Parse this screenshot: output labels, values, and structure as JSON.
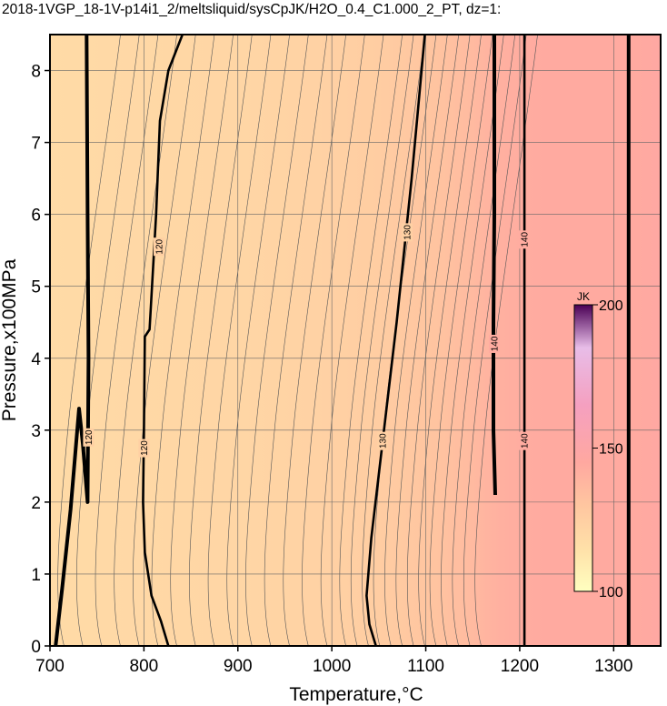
{
  "chart_data": {
    "type": "heatmap",
    "title": "2018-1VGP_18-1V-p14i1_2/meltsliquid/sysCpJK/H2O_0.4_C1.000_2_PT, dz=1:",
    "xlabel": "Temperature,°C",
    "ylabel": "Pressure,x100MPa",
    "xlim": [
      700,
      1350
    ],
    "ylim": [
      0,
      8.5
    ],
    "xticks": [
      "700",
      "800",
      "900",
      "1000",
      "1100",
      "1200",
      "1300"
    ],
    "yticks": [
      "0",
      "1",
      "2",
      "3",
      "4",
      "5",
      "6",
      "7",
      "8"
    ],
    "grid": true,
    "colorbar": {
      "unit": "JK",
      "range": [
        100,
        200
      ],
      "ticks": [
        "100",
        "150",
        "200"
      ],
      "placement": "right-inside",
      "stops": [
        {
          "value": 100,
          "color": "#ffffc0"
        },
        {
          "value": 115,
          "color": "#ffe0a8"
        },
        {
          "value": 130,
          "color": "#ffc6a0"
        },
        {
          "value": 145,
          "color": "#ffa8a0"
        },
        {
          "value": 165,
          "color": "#f5a0c0"
        },
        {
          "value": 185,
          "color": "#e8bde8"
        },
        {
          "value": 200,
          "color": "#4a0055"
        }
      ]
    },
    "background_field": {
      "description_note": "",
      "x": [
        700,
        760,
        830,
        900,
        980,
        1050,
        1110,
        1150,
        1165,
        1180,
        1205,
        1230,
        1320,
        1350
      ],
      "values": [
        118,
        119,
        120,
        121,
        123,
        126,
        131,
        136,
        139,
        141,
        143,
        144,
        144,
        146
      ]
    },
    "labeled_contours": [
      {
        "value": "120",
        "points": [
          [
            706,
            0
          ],
          [
            713,
            0.8
          ],
          [
            722,
            1.9
          ],
          [
            731,
            3.3
          ],
          [
            735,
            2.8
          ],
          [
            740,
            2.0
          ],
          [
            741,
            4.0
          ],
          [
            740,
            6.0
          ],
          [
            739,
            8.5
          ]
        ],
        "labels": [
          [
            741,
            2.9
          ]
        ]
      },
      {
        "value": "120",
        "points": [
          [
            826,
            0
          ],
          [
            818,
            0.35
          ],
          [
            808,
            0.7
          ],
          [
            801,
            1.3
          ],
          [
            799,
            2.0
          ],
          [
            800,
            3.0
          ],
          [
            801,
            4.3
          ],
          [
            806,
            4.4
          ],
          [
            813,
            6.0
          ],
          [
            817,
            7.3
          ],
          [
            826,
            8.0
          ],
          [
            841,
            8.5
          ]
        ],
        "labels": [
          [
            800,
            2.75
          ],
          [
            816,
            5.55
          ]
        ]
      },
      {
        "value": "130",
        "points": [
          [
            1047,
            0
          ],
          [
            1040,
            0.3
          ],
          [
            1037,
            0.7
          ],
          [
            1042,
            1.5
          ],
          [
            1051,
            2.5
          ],
          [
            1060,
            3.5
          ],
          [
            1069,
            4.5
          ],
          [
            1077,
            5.5
          ],
          [
            1085,
            6.5
          ],
          [
            1092,
            7.5
          ],
          [
            1099,
            8.5
          ]
        ],
        "labels": [
          [
            1054,
            2.85
          ],
          [
            1080,
            5.75
          ]
        ]
      },
      {
        "value": "140",
        "points": [
          [
            1174,
            2.1
          ],
          [
            1172,
            3.0
          ],
          [
            1172,
            4.5
          ],
          [
            1173,
            6.0
          ],
          [
            1173,
            8.5
          ]
        ],
        "labels": [
          [
            1173,
            4.2
          ]
        ]
      },
      {
        "value": "140",
        "points": [
          [
            1205,
            0
          ],
          [
            1205,
            8.5
          ]
        ],
        "labels": [
          [
            1205,
            2.85
          ],
          [
            1205,
            5.65
          ]
        ]
      },
      {
        "value": "",
        "points": [
          [
            1316,
            0
          ],
          [
            1316,
            8.5
          ]
        ],
        "labels": [
          [
            1316,
            2.9
          ],
          [
            1316,
            5.75
          ]
        ]
      }
    ]
  }
}
